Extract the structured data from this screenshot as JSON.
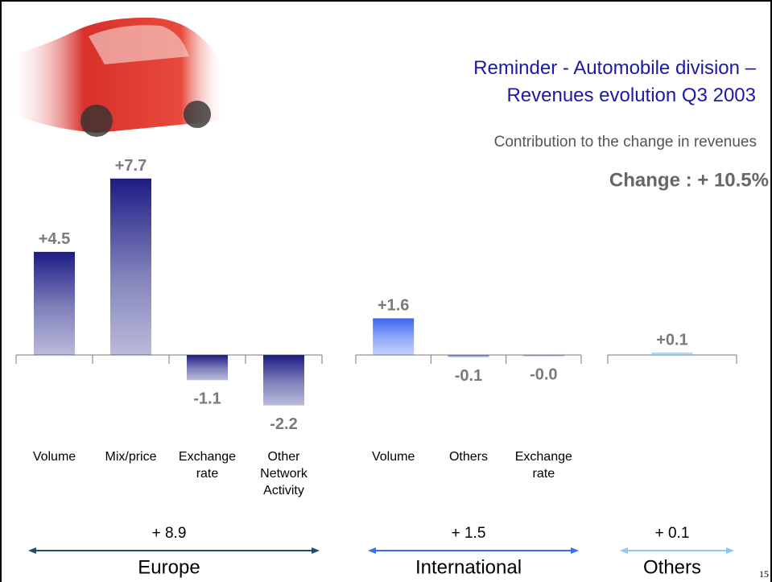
{
  "title": "Reminder - Automobile division –\nRevenues evolution Q3 2003",
  "subtitle": "Contribution to the change in revenues",
  "change": "Change : + 10.5%",
  "page_number": "15",
  "chart_data": [
    {
      "type": "bar",
      "group": "Europe",
      "total": "+ 8.9",
      "color": "#1c1c84",
      "arrow_color": "#1f4e79",
      "categories": [
        "Volume",
        "Mix/price",
        "Exchange\nrate",
        "Other\nNetwork\nActivity"
      ],
      "values": [
        4.5,
        7.7,
        -1.1,
        -2.2
      ],
      "value_labels": [
        "+4.5",
        "+7.7",
        "-1.1",
        "-2.2"
      ],
      "ylim": [
        -2.6,
        8.5
      ]
    },
    {
      "type": "bar",
      "group": "International",
      "total": "+ 1.5",
      "color": "#3a66ee",
      "arrow_color": "#3b6cf0",
      "categories": [
        "Volume",
        "Others",
        "Exchange\nrate"
      ],
      "values": [
        1.6,
        -0.1,
        -0.04
      ],
      "value_labels": [
        "+1.6",
        "-0.1",
        "-0.0"
      ],
      "ylim": [
        -2.6,
        8.5
      ]
    },
    {
      "type": "bar",
      "group": "Others",
      "total": "+ 0.1",
      "color": "#8cc4f0",
      "arrow_color": "#8cc8f0",
      "categories": [
        null
      ],
      "values": [
        0.1
      ],
      "value_labels": [
        "+0.1"
      ],
      "ylim": [
        -2.6,
        8.5
      ]
    }
  ]
}
